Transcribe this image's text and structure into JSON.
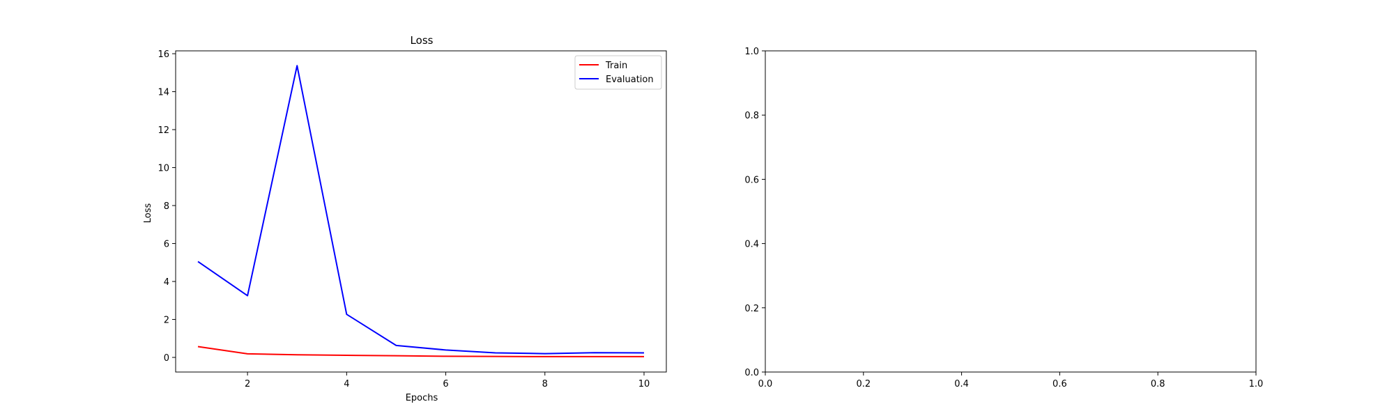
{
  "chart_data": [
    {
      "type": "line",
      "title": "Loss",
      "xlabel": "Epochs",
      "ylabel": "Loss",
      "xlim": [
        0.55,
        10.45
      ],
      "ylim": [
        -0.77,
        16.15
      ],
      "xticks": [
        2,
        4,
        6,
        8,
        10
      ],
      "yticks": [
        0,
        2,
        4,
        6,
        8,
        10,
        12,
        14,
        16
      ],
      "x": [
        1,
        2,
        3,
        4,
        5,
        6,
        7,
        8,
        9,
        10
      ],
      "series": [
        {
          "name": "Train",
          "color": "#ff0000",
          "values": [
            0.57,
            0.19,
            0.14,
            0.11,
            0.09,
            0.06,
            0.05,
            0.04,
            0.04,
            0.04
          ]
        },
        {
          "name": "Evaluation",
          "color": "#0000ff",
          "values": [
            5.05,
            3.25,
            15.37,
            2.27,
            0.63,
            0.39,
            0.24,
            0.2,
            0.25,
            0.24
          ]
        }
      ],
      "grid": false,
      "legend": "top-right"
    },
    {
      "type": "line",
      "title": "",
      "xlabel": "",
      "ylabel": "",
      "xlim": [
        0,
        1
      ],
      "ylim": [
        0,
        1
      ],
      "xticks": [
        0.0,
        0.2,
        0.4,
        0.6,
        0.8,
        1.0
      ],
      "yticks": [
        0.0,
        0.2,
        0.4,
        0.6,
        0.8,
        1.0
      ],
      "series": [],
      "grid": false
    }
  ]
}
